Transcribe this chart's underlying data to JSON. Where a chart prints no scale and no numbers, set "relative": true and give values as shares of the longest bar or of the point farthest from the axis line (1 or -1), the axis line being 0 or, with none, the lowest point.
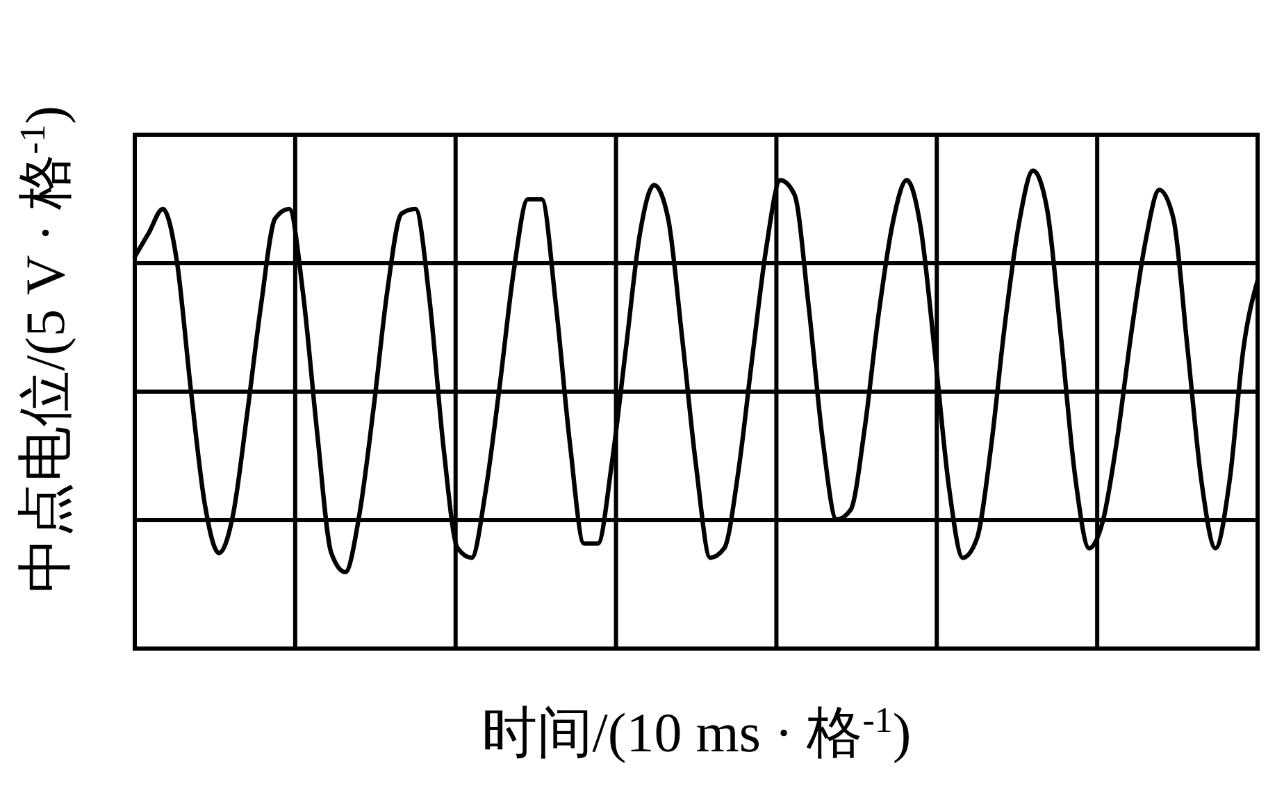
{
  "chart_data": {
    "type": "line",
    "relative": true,
    "xlabel": "时间/(10 ms · 格$^{-1}$)",
    "ylabel": "中点电位/(5 V · 格$^{-1}$)",
    "grid": true,
    "categories": [
      null,
      null,
      null,
      null,
      null,
      null,
      null,
      null,
      null,
      null,
      null,
      null,
      null,
      null,
      null,
      null,
      null,
      null,
      null,
      null,
      null,
      null,
      null,
      null,
      null,
      null,
      null,
      null,
      null,
      null,
      null,
      null,
      null,
      null,
      null,
      null,
      null,
      null,
      null,
      null,
      null,
      null,
      null,
      null,
      null,
      null,
      null,
      null,
      null,
      null,
      null,
      null,
      null,
      null,
      null,
      null,
      null,
      null,
      null,
      null,
      null,
      null,
      null,
      null,
      null,
      null,
      null,
      null,
      null,
      null,
      null,
      null,
      null,
      null,
      null,
      null,
      null,
      null,
      null,
      null,
      null
    ],
    "series": [
      {
        "color": "#000000",
        "values": [
          0.82,
          0.87,
          0.92,
          0.81,
          0.54,
          0.3,
          0.2,
          0.28,
          0.49,
          0.72,
          0.9,
          0.92,
          0.74,
          0.45,
          0.2,
          0.16,
          0.28,
          0.5,
          0.75,
          0.91,
          0.92,
          0.73,
          0.42,
          0.21,
          0.19,
          0.33,
          0.55,
          0.79,
          0.94,
          0.94,
          0.72,
          0.43,
          0.22,
          0.22,
          0.39,
          0.63,
          0.87,
          0.97,
          0.9,
          0.65,
          0.38,
          0.19,
          0.21,
          0.37,
          0.61,
          0.84,
          0.98,
          0.95,
          0.72,
          0.44,
          0.27,
          0.29,
          0.46,
          0.7,
          0.89,
          0.98,
          0.88,
          0.62,
          0.34,
          0.19,
          0.23,
          0.42,
          0.68,
          0.89,
          1.0,
          0.92,
          0.65,
          0.36,
          0.21,
          0.27,
          0.44,
          0.66,
          0.85,
          0.96,
          0.9,
          0.63,
          0.35,
          0.21,
          0.35,
          0.63,
          0.77
        ]
      }
    ]
  }
}
